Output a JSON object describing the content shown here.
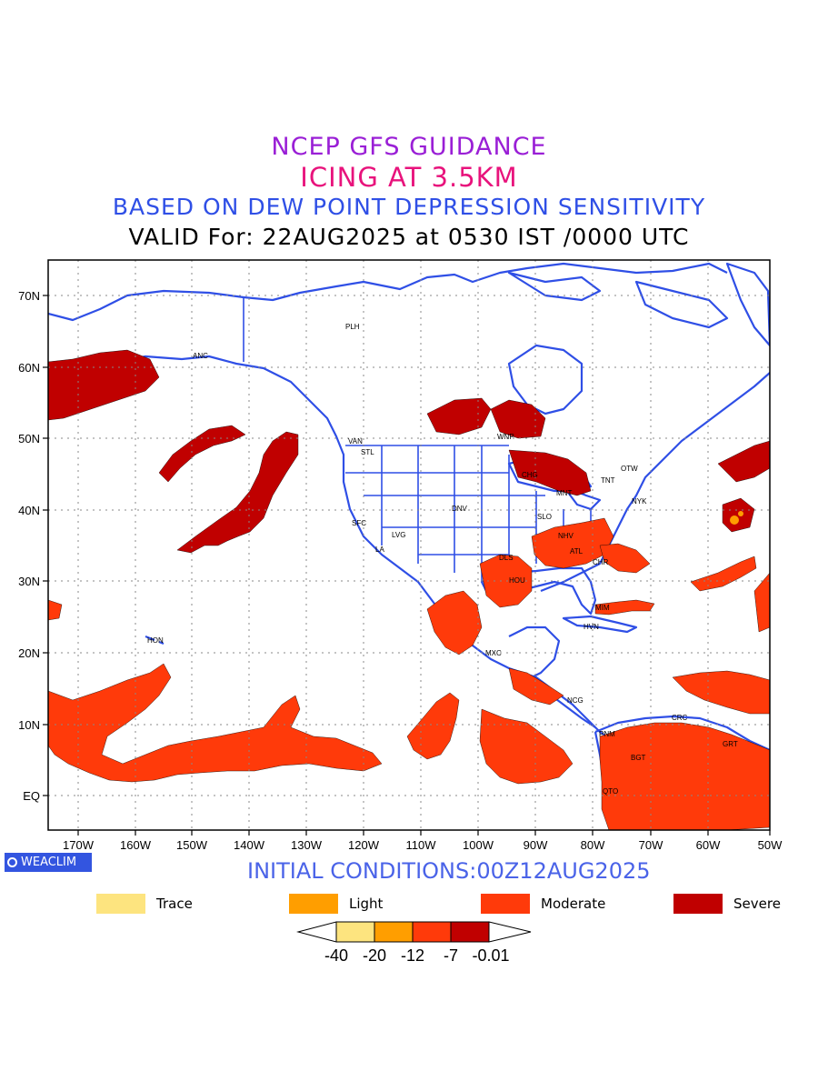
{
  "title": {
    "line1": "NCEP GFS GUIDANCE",
    "line2": "ICING AT 3.5KM",
    "line3": "BASED ON DEW POINT DEPRESSION SENSITIVITY",
    "line4": "VALID For: 22AUG2025 at 0530 IST /0000 UTC"
  },
  "map": {
    "lat_labels": [
      "70N",
      "60N",
      "50N",
      "40N",
      "30N",
      "20N",
      "10N",
      "EQ"
    ],
    "lon_labels": [
      "170W",
      "160W",
      "150W",
      "140W",
      "130W",
      "120W",
      "110W",
      "100W",
      "90W",
      "80W",
      "70W",
      "60W",
      "50W"
    ],
    "stations": [
      "ANC",
      "PLH",
      "VAN",
      "STL",
      "WNP",
      "TNT",
      "OTW",
      "NYK",
      "DNV",
      "SFC",
      "LVG",
      "LA",
      "SLO",
      "NHV",
      "ATL",
      "CHR",
      "DLS",
      "HOU",
      "MIM",
      "HVN",
      "MXC",
      "HON",
      "NCG",
      "PNM",
      "CRC",
      "BGT",
      "GRT",
      "QTO",
      "CHG",
      "MNT"
    ],
    "land_color": "#ffffff",
    "coast_color": "#2f4fe6"
  },
  "footer": {
    "logo": "WEACLIM",
    "initial_conditions": "INITIAL CONDITIONS:00Z12AUG2025"
  },
  "legend": [
    {
      "label": "Trace",
      "color": "#fde47f"
    },
    {
      "label": "Light",
      "color": "#ff9e00"
    },
    {
      "label": "Moderate",
      "color": "#ff3a0a"
    },
    {
      "label": "Severe",
      "color": "#c00000"
    }
  ],
  "colorbar": {
    "colors": [
      "#fde47f",
      "#ff9e00",
      "#ff3a0a",
      "#c00000"
    ],
    "tick_labels": [
      "-40",
      "-20",
      "-12",
      "-7",
      "-0.01"
    ]
  }
}
